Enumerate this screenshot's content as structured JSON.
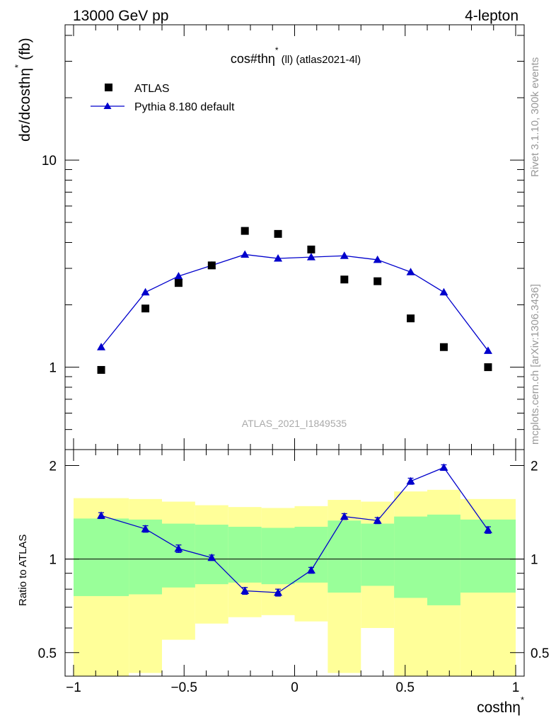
{
  "header": {
    "left": "13000 GeV pp",
    "right": "4-lepton"
  },
  "side_text": {
    "top": "Rivet 3.1.10,  300k events",
    "bottom": "mcplots.cern.ch [arXiv:1306.3436]"
  },
  "chart_data": [
    {
      "type": "scatter",
      "title_main": "cos#th",
      "title_sym": "η",
      "title_sup": "*",
      "title_rest": "(ll) (atlas2021-4l)",
      "watermark": "ATLAS_2021_I1849535",
      "ylabel": "dσ/dcosthη* (fb)",
      "ylabel_main": "dσ/dcosthη",
      "ylabel_sup": "*",
      "ylabel_tail": "(fb)",
      "yscale": "log",
      "ylim": [
        0.4,
        45
      ],
      "xlim": [
        -1,
        1
      ],
      "ytick_labels": [
        "1",
        "10"
      ],
      "legend": {
        "placement": "top-left",
        "entries": [
          "ATLAS",
          "Pythia 8.180 default"
        ]
      },
      "x": [
        -0.875,
        -0.675,
        -0.525,
        -0.375,
        -0.225,
        -0.075,
        0.075,
        0.225,
        0.375,
        0.525,
        0.675,
        0.875
      ],
      "series": [
        {
          "name": "ATLAS",
          "marker": "square",
          "color": "#000000",
          "values": [
            0.97,
            1.92,
            2.55,
            3.1,
            4.55,
            4.4,
            3.7,
            2.65,
            2.6,
            1.72,
            1.25,
            1.0
          ]
        },
        {
          "name": "Pythia 8.180 default",
          "marker": "triangle",
          "color": "#0000cc",
          "values": [
            1.25,
            2.3,
            2.75,
            3.1,
            3.5,
            3.35,
            3.4,
            3.45,
            3.3,
            2.88,
            2.3,
            1.2
          ]
        }
      ]
    },
    {
      "type": "line",
      "ylabel": "Ratio to ATLAS",
      "xlabel": "costhη*",
      "xlabel_main": "costhη",
      "xlabel_sup": "*",
      "ylim": [
        0.42,
        2.25
      ],
      "xlim": [
        -1,
        1
      ],
      "xtick_labels": [
        "−1",
        "−0.5",
        "0",
        "0.5",
        "1"
      ],
      "ytick_labels": [
        "0.5",
        "1",
        "2"
      ],
      "reference_line": 1,
      "bin_edges": [
        -1,
        -0.75,
        -0.6,
        -0.45,
        -0.3,
        -0.15,
        0,
        0.15,
        0.3,
        0.45,
        0.6,
        0.75,
        1
      ],
      "band_outer": {
        "color": "#ffff99",
        "lo": [
          0.37,
          0.43,
          0.55,
          0.62,
          0.65,
          0.66,
          0.63,
          0.43,
          0.6,
          0.36,
          0.38,
          0.42
        ],
        "hi": [
          1.57,
          1.56,
          1.53,
          1.49,
          1.47,
          1.46,
          1.48,
          1.55,
          1.53,
          1.65,
          1.67,
          1.56
        ]
      },
      "band_inner": {
        "color": "#99ff99",
        "lo": [
          0.76,
          0.77,
          0.81,
          0.83,
          0.84,
          0.83,
          0.84,
          0.78,
          0.82,
          0.75,
          0.71,
          0.78
        ],
        "hi": [
          1.35,
          1.34,
          1.3,
          1.29,
          1.27,
          1.26,
          1.27,
          1.33,
          1.3,
          1.37,
          1.39,
          1.34
        ]
      },
      "series": [
        {
          "name": "Pythia 8.180 default",
          "color": "#0000cc",
          "x": [
            -0.875,
            -0.675,
            -0.525,
            -0.375,
            -0.225,
            -0.075,
            0.075,
            0.225,
            0.375,
            0.525,
            0.675,
            0.875
          ],
          "values": [
            1.38,
            1.25,
            1.08,
            1.01,
            0.79,
            0.78,
            0.92,
            1.37,
            1.33,
            1.78,
            1.97,
            1.24
          ],
          "errors": [
            0.03,
            0.03,
            0.03,
            0.02,
            0.02,
            0.02,
            0.02,
            0.03,
            0.03,
            0.04,
            0.04,
            0.03
          ]
        }
      ]
    }
  ]
}
